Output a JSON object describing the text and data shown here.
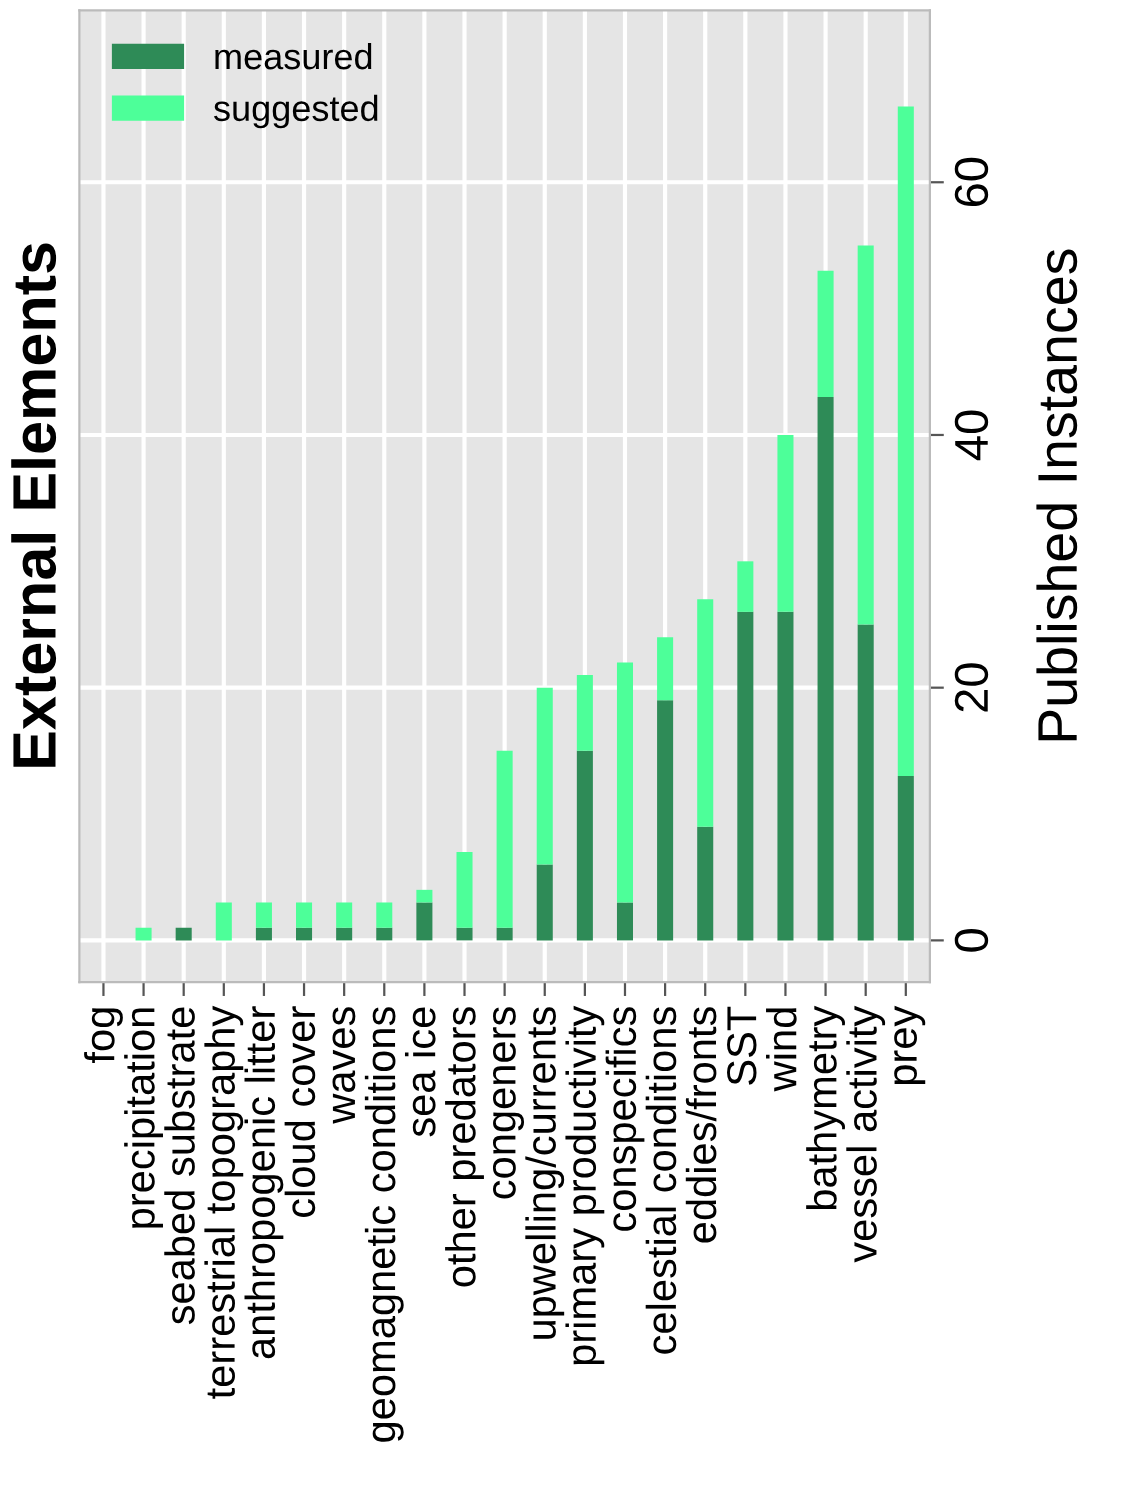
{
  "chart_data": {
    "type": "bar",
    "title": "External Elements",
    "ylabel": "Published Instances",
    "categories": [
      "fog",
      "precipitation",
      "seabed substrate",
      "terrestrial topography",
      "anthropogenic litter",
      "cloud cover",
      "waves",
      "geomagnetic conditions",
      "sea ice",
      "other predators",
      "congeners",
      "upwelling/currents",
      "primary productivity",
      "conspecifics",
      "celestial conditions",
      "eddies/fronts",
      "SST",
      "wind",
      "bathymetry",
      "vessel activity",
      "prey"
    ],
    "stacked": true,
    "series": [
      {
        "name": "measured",
        "color": "#2e8b57",
        "values": [
          0,
          0,
          1,
          0,
          1,
          1,
          1,
          1,
          3,
          1,
          1,
          6,
          15,
          3,
          19,
          9,
          26,
          26,
          43,
          25,
          13
        ]
      },
      {
        "name": "suggested",
        "color": "#4dff99",
        "values": [
          0,
          1,
          0,
          3,
          2,
          2,
          2,
          2,
          1,
          6,
          14,
          14,
          6,
          19,
          5,
          18,
          4,
          14,
          10,
          30,
          53
        ]
      }
    ],
    "ylim": [
      -3.3,
      73.6
    ],
    "yticks": [
      0,
      20,
      40,
      60
    ],
    "grid": true,
    "legend": "top left"
  }
}
